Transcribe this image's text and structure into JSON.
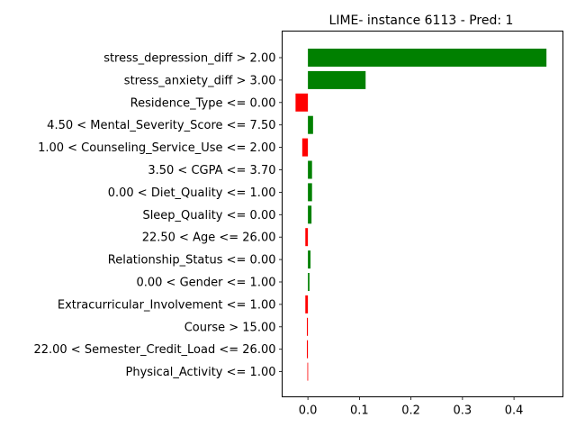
{
  "chart_data": {
    "type": "bar",
    "orientation": "horizontal",
    "title": "LIME- instance 6113 - Pred: 1",
    "xlabel": "",
    "ylabel": "",
    "xlim": [
      -0.05,
      0.495
    ],
    "xticks": [
      0.0,
      0.1,
      0.2,
      0.3,
      0.4
    ],
    "xtick_labels": [
      "0.0",
      "0.1",
      "0.2",
      "0.3",
      "0.4"
    ],
    "grid": false,
    "colors": {
      "positive": "#008000",
      "negative": "#ff0000"
    },
    "categories": [
      "stress_depression_diff > 2.00",
      "stress_anxiety_diff > 3.00",
      "Residence_Type <= 0.00",
      "4.50 < Mental_Severity_Score <= 7.50",
      "1.00 < Counseling_Service_Use <= 2.00",
      "3.50 < CGPA <= 3.70",
      "0.00 < Diet_Quality <= 1.00",
      "Sleep_Quality <= 0.00",
      "22.50 < Age <= 26.00",
      "Relationship_Status <= 0.00",
      "0.00 < Gender <= 1.00",
      "Extracurricular_Involvement <= 1.00",
      "Course > 15.00",
      "22.00 < Semester_Credit_Load <= 26.00",
      "Physical_Activity <= 1.00"
    ],
    "values": [
      0.463,
      0.112,
      -0.024,
      0.01,
      -0.011,
      0.008,
      0.008,
      0.007,
      -0.005,
      0.005,
      0.003,
      -0.005,
      -0.002,
      -0.002,
      -0.001
    ]
  }
}
